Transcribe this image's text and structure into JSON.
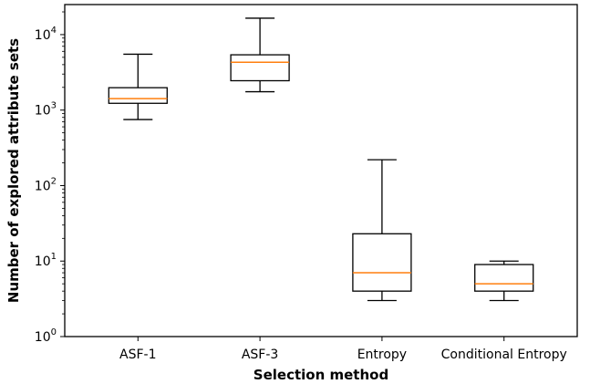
{
  "chart_data": {
    "type": "box",
    "title": "",
    "xlabel": "Selection method",
    "ylabel": "Number of explored attribute sets",
    "yscale": "log",
    "ylim": [
      1,
      25000
    ],
    "grid": false,
    "categories": [
      "ASF-1",
      "ASF-3",
      "Entropy",
      "Conditional Entropy"
    ],
    "boxes": [
      {
        "category": "ASF-1",
        "whisker_low": 750,
        "q1": 1230,
        "median": 1420,
        "q3": 1980,
        "whisker_high": 5500
      },
      {
        "category": "ASF-3",
        "whisker_low": 1750,
        "q1": 2450,
        "median": 4300,
        "q3": 5400,
        "whisker_high": 16500
      },
      {
        "category": "Entropy",
        "whisker_low": 3,
        "q1": 4,
        "median": 7,
        "q3": 23,
        "whisker_high": 220
      },
      {
        "category": "Conditional Entropy",
        "whisker_low": 3,
        "q1": 4,
        "median": 5,
        "q3": 9,
        "whisker_high": 10
      }
    ],
    "yticks": [
      {
        "value": 1,
        "base": "10",
        "exp": "0"
      },
      {
        "value": 10,
        "base": "10",
        "exp": "1"
      },
      {
        "value": 100,
        "base": "10",
        "exp": "2"
      },
      {
        "value": 1000,
        "base": "10",
        "exp": "3"
      },
      {
        "value": 10000,
        "base": "10",
        "exp": "4"
      }
    ],
    "colors": {
      "box": "#000000",
      "median": "#ff7f0e"
    }
  }
}
